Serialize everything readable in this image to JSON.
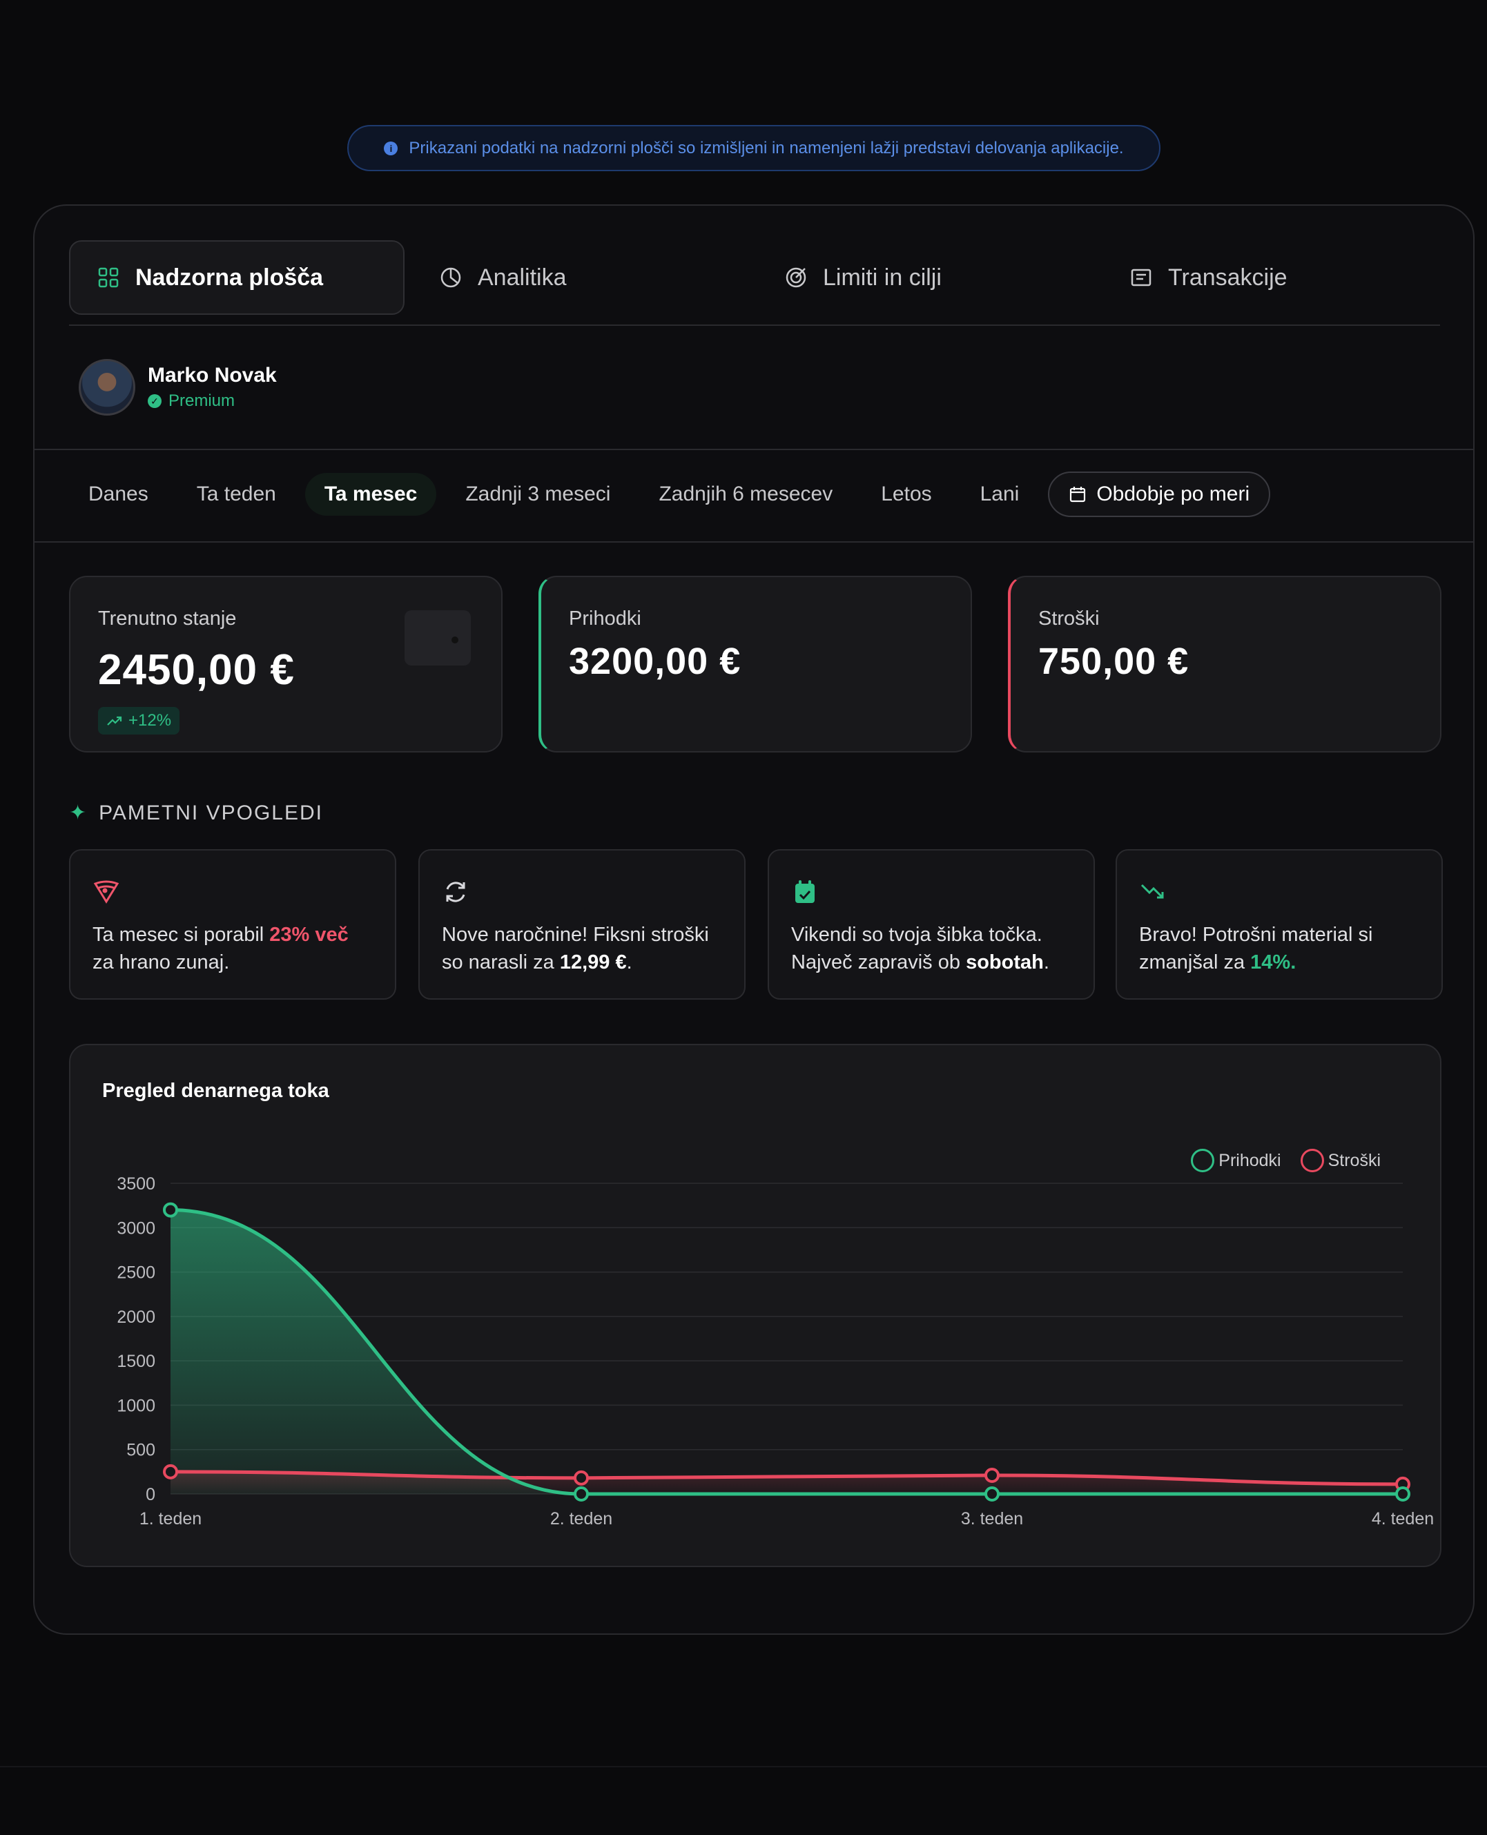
{
  "notice": {
    "text": "Prikazani podatki na nadzorni plošči so izmišljeni in namenjeni lažji predstavi delovanja aplikacije."
  },
  "tabs": [
    {
      "label": "Nadzorna plošča",
      "icon": "grid-icon"
    },
    {
      "label": "Analitika",
      "icon": "pie-chart-icon"
    },
    {
      "label": "Limiti in cilji",
      "icon": "target-icon"
    },
    {
      "label": "Transakcije",
      "icon": "receipt-icon"
    }
  ],
  "user": {
    "name": "Marko Novak",
    "badge": "Premium"
  },
  "periods": [
    {
      "label": "Danes"
    },
    {
      "label": "Ta teden"
    },
    {
      "label": "Ta mesec"
    },
    {
      "label": "Zadnji 3 meseci"
    },
    {
      "label": "Zadnjih 6 mesecev"
    },
    {
      "label": "Letos"
    },
    {
      "label": "Lani"
    },
    {
      "label": "Obdobje po meri"
    }
  ],
  "cards": {
    "balance": {
      "label": "Trenutno stanje",
      "value": "2450,00 €",
      "trend": "+12%"
    },
    "income": {
      "label": "Prihodki",
      "value": "3200,00 €"
    },
    "expenses": {
      "label": "Stroški",
      "value": "750,00 €"
    }
  },
  "insights": {
    "title": "PAMETNI VPOGLEDI",
    "i1": {
      "pre": "Ta mesec si porabil ",
      "hl": "23% več",
      "post": " za hrano zunaj."
    },
    "i2": {
      "pre": "Nove naročnine! Fiksni stroški so narasli za ",
      "hl": "12,99 €",
      "post": "."
    },
    "i3": {
      "pre": "Vikendi so tvoja šibka točka. Največ zapraviš ob ",
      "hl": "sobotah",
      "post": "."
    },
    "i4": {
      "pre": "Bravo! Potrošni material si zmanjšal za ",
      "hl": "14%.",
      "post": ""
    }
  },
  "colors": {
    "income": "#2fbf86",
    "expense": "#e8495f",
    "accent": "#2fbf86"
  },
  "chart_data": {
    "type": "line",
    "title": "Pregled denarnega toka",
    "categories": [
      "1. teden",
      "2. teden",
      "3. teden",
      "4. teden"
    ],
    "series": [
      {
        "name": "Prihodki",
        "values": [
          3200,
          0,
          0,
          0
        ]
      },
      {
        "name": "Stroški",
        "values": [
          250,
          180,
          210,
          110
        ]
      }
    ],
    "yticks": [
      0,
      500,
      1000,
      1500,
      2000,
      2500,
      3000,
      3500
    ],
    "ylim": [
      0,
      3500
    ],
    "legend": "top-right",
    "grid": true
  }
}
